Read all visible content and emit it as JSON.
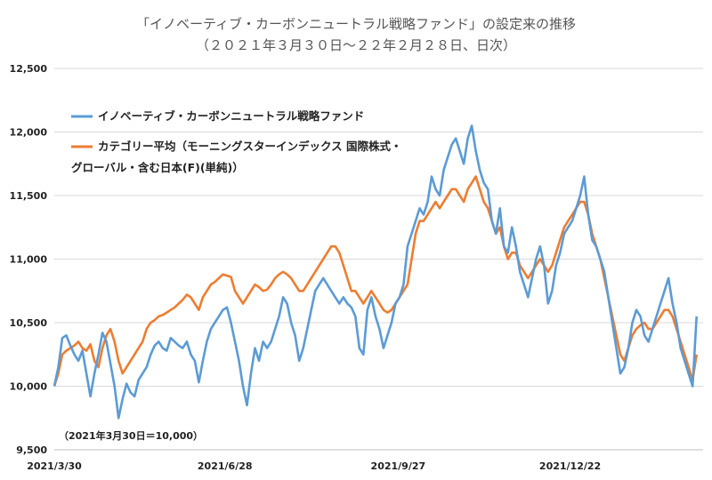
{
  "chart_data": {
    "type": "line",
    "title": "「イノベーティブ・カーボンニュートラル戦略ファンド」の設定来の推移",
    "subtitle": "（２０２１年３月３０日～２２年２月２８日、日次）",
    "xlabel": "",
    "ylabel": "",
    "ylim": [
      9500,
      12500
    ],
    "yticks": [
      "9,500",
      "10,000",
      "10,500",
      "11,000",
      "11,500",
      "12,000",
      "12,500"
    ],
    "xticks": [
      "2021/3/30",
      "2021/6/28",
      "2021/9/27",
      "2021/12/22"
    ],
    "grid": true,
    "legend_position": "top-left",
    "annotation": "（2021年3月30日＝10,000）",
    "series": [
      {
        "name": "イノベーティブ・カーボンニュートラル戦略ファンド",
        "color": "#5B9BD5",
        "values": [
          10000,
          10150,
          10380,
          10400,
          10320,
          10250,
          10200,
          10280,
          10100,
          9920,
          10100,
          10250,
          10420,
          10350,
          10180,
          10000,
          9750,
          9900,
          10020,
          9950,
          9920,
          10050,
          10100,
          10150,
          10250,
          10320,
          10350,
          10300,
          10280,
          10380,
          10350,
          10320,
          10300,
          10350,
          10250,
          10200,
          10030,
          10200,
          10350,
          10450,
          10500,
          10550,
          10600,
          10620,
          10500,
          10350,
          10200,
          10000,
          9850,
          10100,
          10300,
          10200,
          10350,
          10300,
          10350,
          10450,
          10550,
          10700,
          10650,
          10500,
          10400,
          10200,
          10300,
          10450,
          10600,
          10750,
          10800,
          10850,
          10800,
          10750,
          10700,
          10650,
          10700,
          10650,
          10620,
          10550,
          10300,
          10250,
          10600,
          10700,
          10550,
          10450,
          10300,
          10400,
          10500,
          10650,
          10700,
          10800,
          11100,
          11200,
          11300,
          11400,
          11350,
          11450,
          11650,
          11550,
          11500,
          11700,
          11800,
          11900,
          11950,
          11850,
          11750,
          11950,
          12050,
          11850,
          11700,
          11600,
          11550,
          11300,
          11200,
          11400,
          11100,
          11050,
          11250,
          11100,
          10900,
          10800,
          10700,
          10850,
          11000,
          11100,
          10950,
          10650,
          10750,
          10950,
          11050,
          11200,
          11250,
          11300,
          11400,
          11500,
          11650,
          11350,
          11150,
          11100,
          11000,
          10900,
          10700,
          10500,
          10300,
          10100,
          10150,
          10300,
          10500,
          10600,
          10550,
          10400,
          10350,
          10450,
          10550,
          10650,
          10750,
          10850,
          10650,
          10500,
          10300,
          10200,
          10100,
          10000,
          10550
        ],
        "values_note": ""
      },
      {
        "name": "カテゴリー平均（モーニングスターインデックス 国際株式・グローバル・含む日本(F)(単純)）",
        "color": "#ED7D31",
        "values": [
          10000,
          10100,
          10250,
          10280,
          10300,
          10320,
          10350,
          10300,
          10280,
          10330,
          10200,
          10150,
          10300,
          10400,
          10450,
          10350,
          10200,
          10100,
          10150,
          10200,
          10250,
          10300,
          10350,
          10450,
          10500,
          10520,
          10550,
          10560,
          10580,
          10600,
          10620,
          10650,
          10680,
          10720,
          10700,
          10650,
          10600,
          10700,
          10750,
          10800,
          10820,
          10850,
          10880,
          10870,
          10860,
          10750,
          10700,
          10650,
          10700,
          10750,
          10800,
          10780,
          10750,
          10760,
          10800,
          10850,
          10880,
          10900,
          10880,
          10850,
          10800,
          10750,
          10750,
          10800,
          10850,
          10900,
          10950,
          11000,
          11050,
          11100,
          11100,
          11050,
          10950,
          10850,
          10750,
          10750,
          10700,
          10650,
          10700,
          10750,
          10700,
          10650,
          10600,
          10580,
          10600,
          10650,
          10700,
          10750,
          10800,
          11000,
          11200,
          11300,
          11300,
          11350,
          11400,
          11450,
          11400,
          11450,
          11500,
          11550,
          11550,
          11500,
          11450,
          11550,
          11600,
          11650,
          11550,
          11450,
          11400,
          11300,
          11200,
          11250,
          11100,
          11000,
          11050,
          11050,
          10950,
          10900,
          10850,
          10900,
          10950,
          11000,
          10950,
          10900,
          10950,
          11050,
          11150,
          11250,
          11300,
          11350,
          11400,
          11450,
          11450,
          11350,
          11200,
          11100,
          11000,
          10850,
          10700,
          10550,
          10400,
          10250,
          10200,
          10300,
          10400,
          10450,
          10480,
          10500,
          10450,
          10450,
          10500,
          10550,
          10600,
          10600,
          10550,
          10450,
          10350,
          10250,
          10150,
          10050,
          10250
        ],
        "values_note": ""
      }
    ]
  },
  "colors": {
    "grid": "#d9d9d9",
    "axis": "#bfbfbf"
  }
}
